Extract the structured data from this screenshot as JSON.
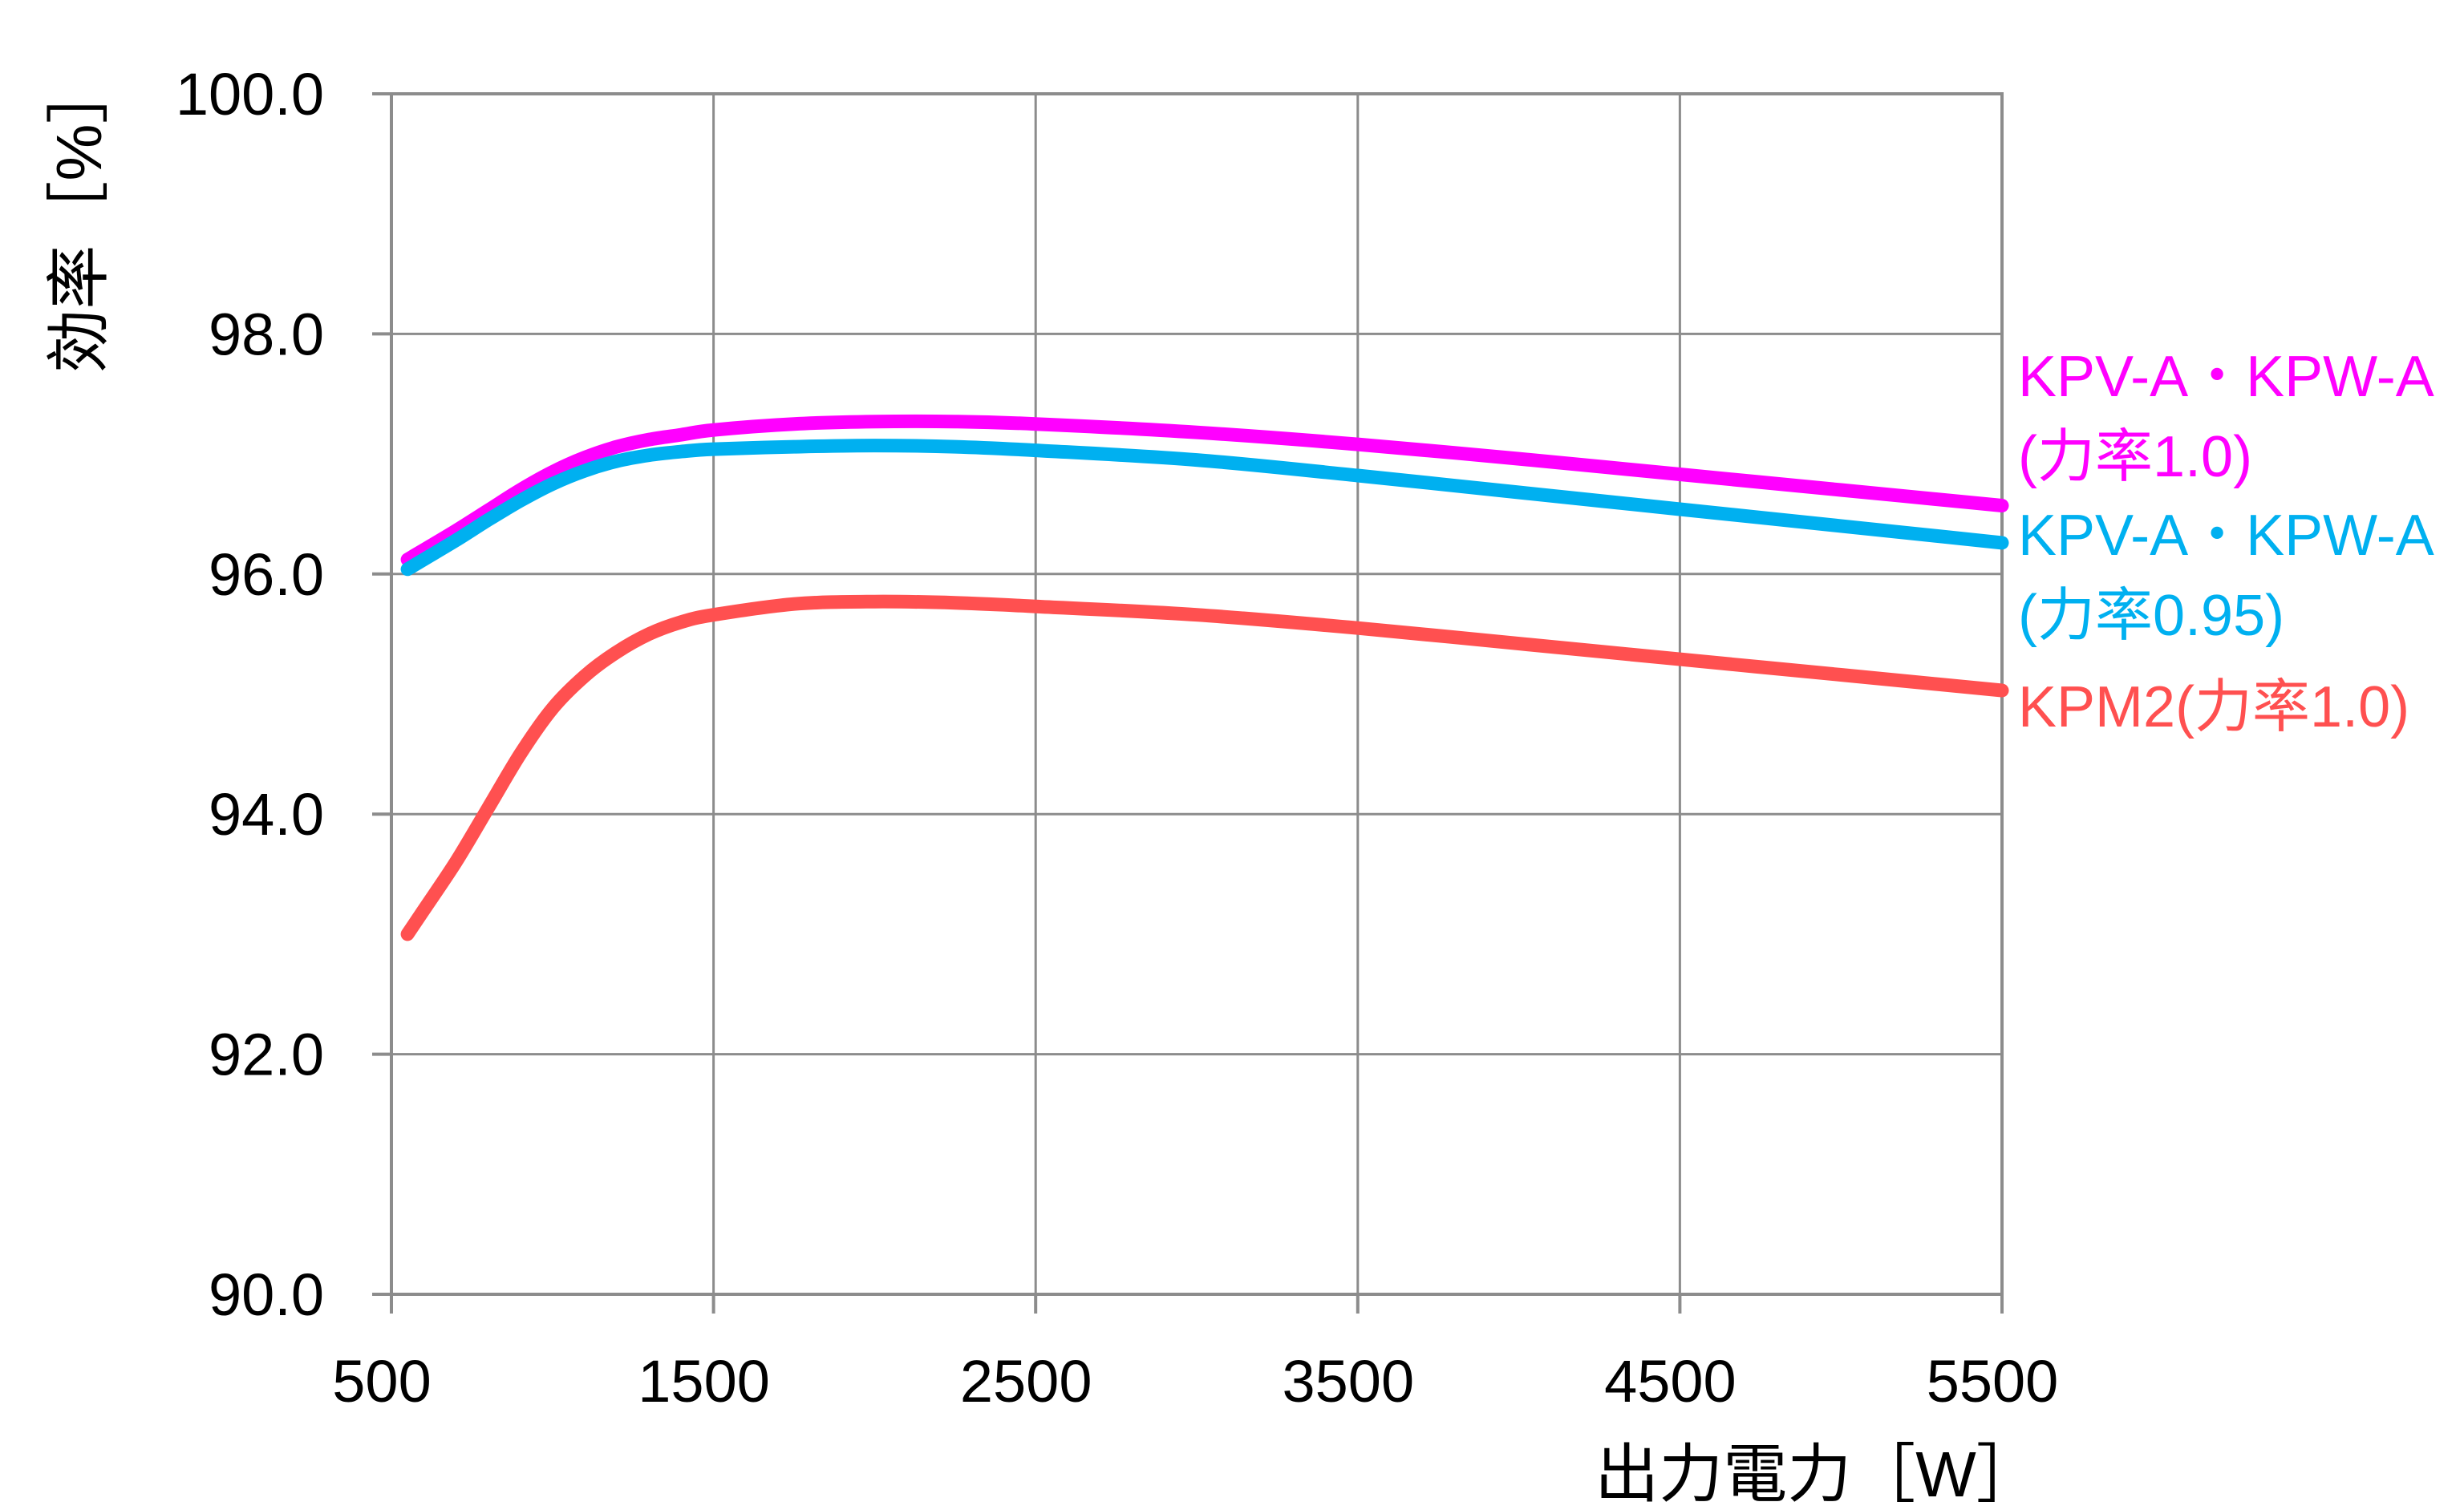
{
  "chart_data": {
    "type": "line",
    "xlabel": "出力電力［W］",
    "ylabel": "効率［%］",
    "xlim": [
      500,
      5500
    ],
    "ylim": [
      90,
      100
    ],
    "x_ticks": [
      500,
      1500,
      2500,
      3500,
      4500,
      5500
    ],
    "x_tick_labels": [
      "500",
      "1500",
      "2500",
      "3500",
      "4500",
      "5500"
    ],
    "y_ticks": [
      90,
      92,
      94,
      96,
      98,
      100
    ],
    "y_tick_labels": [
      "90.0",
      "92.0",
      "94.0",
      "96.0",
      "98.0",
      "100.0"
    ],
    "grid": true,
    "legend_placement": "right",
    "series": [
      {
        "name": "KPV-A・KPW-A(力率1.0)",
        "label_lines": [
          "KPV-A・KPW-A",
          "(力率1.0)"
        ],
        "color": "#FF00FF",
        "x": [
          550,
          600,
          700,
          800,
          900,
          1000,
          1100,
          1200,
          1300,
          1400,
          1500,
          1750,
          2000,
          2250,
          2500,
          3000,
          3500,
          4000,
          4500,
          5000,
          5500
        ],
        "values": [
          96.12,
          96.2,
          96.36,
          96.53,
          96.7,
          96.85,
          96.97,
          97.06,
          97.12,
          97.16,
          97.2,
          97.25,
          97.27,
          97.27,
          97.25,
          97.18,
          97.08,
          96.96,
          96.83,
          96.7,
          96.57
        ]
      },
      {
        "name": "KPV-A・KPW-A(力率0.95)",
        "label_lines": [
          "KPV-A・KPW-A",
          "(力率0.95)"
        ],
        "color": "#00B0F0",
        "x": [
          550,
          600,
          700,
          800,
          900,
          1000,
          1100,
          1200,
          1300,
          1400,
          1500,
          1750,
          2000,
          2250,
          2500,
          3000,
          3500,
          4000,
          4500,
          5000,
          5500
        ],
        "values": [
          96.04,
          96.12,
          96.28,
          96.45,
          96.61,
          96.75,
          96.86,
          96.94,
          96.99,
          97.02,
          97.04,
          97.06,
          97.07,
          97.06,
          97.03,
          96.95,
          96.82,
          96.68,
          96.54,
          96.4,
          96.26
        ]
      },
      {
        "name": "KPM2(力率1.0)",
        "label_lines": [
          "KPM2(力率1.0)"
        ],
        "color": "#FF5050",
        "x": [
          550,
          600,
          700,
          800,
          900,
          1000,
          1100,
          1200,
          1300,
          1400,
          1500,
          1750,
          2000,
          2250,
          2500,
          3000,
          3500,
          4000,
          4500,
          5000,
          5500
        ],
        "values": [
          93.0,
          93.2,
          93.6,
          94.05,
          94.5,
          94.88,
          95.15,
          95.35,
          95.5,
          95.6,
          95.66,
          95.75,
          95.77,
          95.76,
          95.73,
          95.66,
          95.55,
          95.42,
          95.29,
          95.16,
          95.03
        ]
      }
    ]
  }
}
